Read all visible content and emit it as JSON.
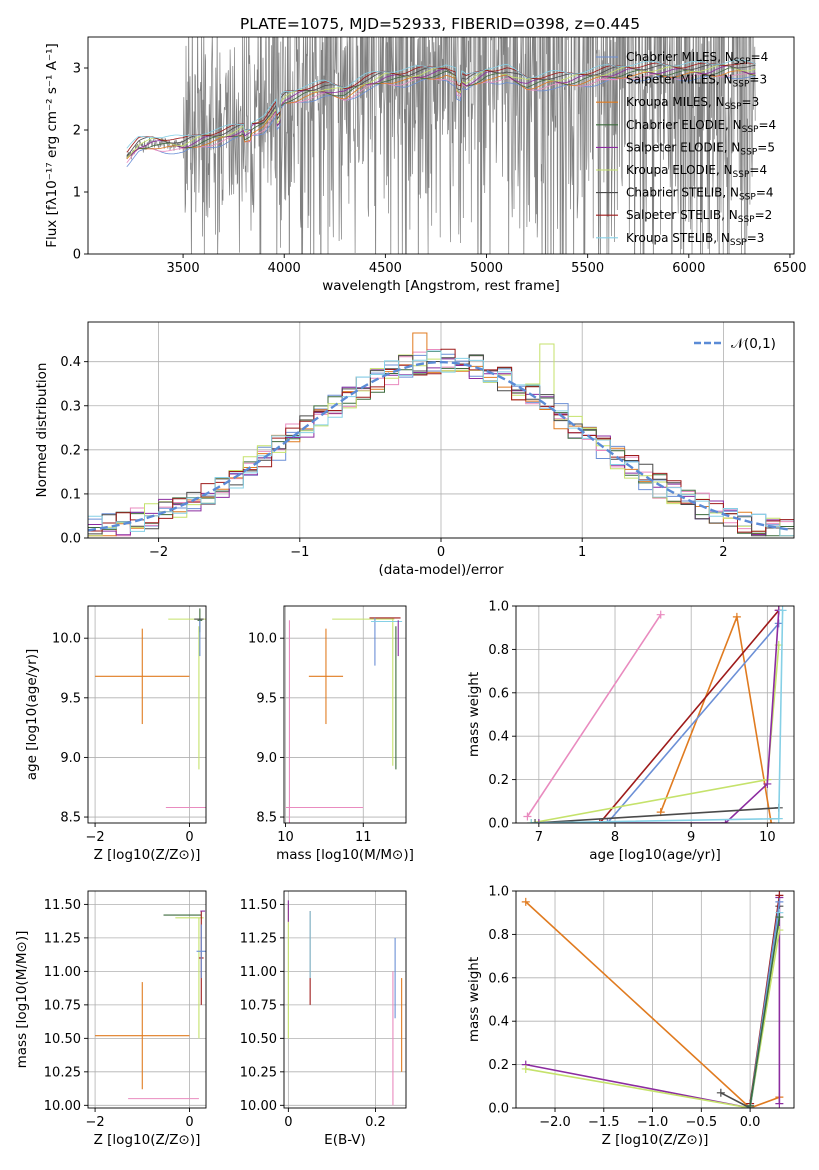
{
  "figure_title": "PLATE=1075, MJD=52933, FIBERID=0398, z=0.445",
  "models": [
    {
      "name": "Chabrier MILES",
      "nssp": "4",
      "color": "#6b8fd6"
    },
    {
      "name": "Salpeter MILES",
      "nssp": "3",
      "color": "#e98bbf"
    },
    {
      "name": "Kroupa MILES",
      "nssp": "3",
      "color": "#e07b20"
    },
    {
      "name": "Chabrier ELODIE",
      "nssp": "4",
      "color": "#3d6b3d"
    },
    {
      "name": "Salpeter ELODIE",
      "nssp": "5",
      "color": "#8c2ca0"
    },
    {
      "name": "Kroupa ELODIE",
      "nssp": "4",
      "color": "#c5e26b"
    },
    {
      "name": "Chabrier STELIB",
      "nssp": "4",
      "color": "#4a4a4a"
    },
    {
      "name": "Salpeter STELIB",
      "nssp": "2",
      "color": "#9e1b1b"
    },
    {
      "name": "Kroupa STELIB",
      "nssp": "3",
      "color": "#86d0e6"
    }
  ],
  "chart_data": [
    {
      "id": "spectrum",
      "type": "line",
      "xlabel": "wavelength [Angstrom, rest frame]",
      "ylabel": "Flux [fλ10⁻¹⁷ erg cm⁻² s⁻¹ A⁻¹]",
      "xlim": [
        3030,
        6520
      ],
      "ylim": [
        0,
        3.5
      ],
      "xticks": [
        3500,
        4000,
        4500,
        5000,
        5500,
        6000,
        6500
      ],
      "yticks": [
        0,
        1,
        2,
        3
      ],
      "legend": "top-right",
      "data_color": "#808080",
      "continuum": [
        [
          3220,
          1.55
        ],
        [
          3280,
          1.75
        ],
        [
          3350,
          1.8
        ],
        [
          3420,
          1.78
        ],
        [
          3500,
          1.75
        ],
        [
          3600,
          1.85
        ],
        [
          3700,
          1.9
        ],
        [
          3800,
          2.0
        ],
        [
          3900,
          2.1
        ],
        [
          4000,
          2.5
        ],
        [
          4100,
          2.6
        ],
        [
          4200,
          2.65
        ],
        [
          4300,
          2.6
        ],
        [
          4400,
          2.75
        ],
        [
          4500,
          2.85
        ],
        [
          4600,
          2.85
        ],
        [
          4700,
          2.9
        ],
        [
          4800,
          2.95
        ],
        [
          4900,
          2.75
        ],
        [
          5000,
          2.9
        ],
        [
          5100,
          2.9
        ],
        [
          5200,
          2.75
        ],
        [
          5300,
          2.8
        ],
        [
          5400,
          2.8
        ],
        [
          5500,
          2.85
        ],
        [
          5600,
          2.9
        ],
        [
          5700,
          2.95
        ],
        [
          5800,
          2.95
        ],
        [
          5900,
          2.95
        ],
        [
          6000,
          2.95
        ],
        [
          6100,
          2.95
        ],
        [
          6200,
          3.0
        ],
        [
          6300,
          2.95
        ]
      ]
    },
    {
      "id": "residuals",
      "type": "histogram",
      "xlabel": "(data-model)/error",
      "ylabel": "Normed distribution",
      "xlim": [
        -2.5,
        2.5
      ],
      "ylim": [
        0,
        0.49
      ],
      "xticks": [
        -2,
        -1,
        0,
        1,
        2
      ],
      "yticks": [
        0.0,
        0.1,
        0.2,
        0.3,
        0.4
      ],
      "grid": true,
      "legend": "top-right",
      "reference_curve": {
        "label": "𝒩(0,1)",
        "color": "#5b8bd6",
        "style": "dashed"
      },
      "bin_width": 0.1
    },
    {
      "id": "age-Z",
      "type": "errorbar",
      "xlabel": "Z [log10(Z/Z⊙)]",
      "ylabel": "age [log10(age/yr)]",
      "xlim": [
        -2.15,
        0.35
      ],
      "ylim": [
        8.45,
        10.27
      ],
      "xticks": [
        -2,
        0
      ],
      "yticks": [
        8.5,
        9.0,
        9.5,
        10.0
      ],
      "grid": true,
      "points": [
        {
          "model": 2,
          "x": -1.0,
          "xerr": 1.0,
          "y": 9.68,
          "yerr": 0.4
        },
        {
          "model": 1,
          "x": 0.1,
          "xerr": 0.6,
          "y": 8.58,
          "yerr": 0.0
        },
        {
          "model": 5,
          "x": 0.15,
          "xerr": 0.6,
          "y": 10.16,
          "yerr": 0.0
        },
        {
          "model": 5,
          "x": 0.2,
          "xerr": 0.0,
          "y": 9.5,
          "yerr": 0.6
        },
        {
          "model": 3,
          "x": 0.22,
          "xerr": 0.05,
          "y": 10.15,
          "yerr": 0.1
        },
        {
          "model": 0,
          "x": 0.22,
          "xerr": 0.0,
          "y": 10.0,
          "yerr": 0.15
        },
        {
          "model": 6,
          "x": 0.2,
          "xerr": 0.1,
          "y": 10.16,
          "yerr": 0.0
        }
      ]
    },
    {
      "id": "age-mass",
      "type": "errorbar",
      "xlabel": "mass [log10(M/M⊙)]",
      "ylabel": "",
      "xlim": [
        9.98,
        11.55
      ],
      "ylim": [
        8.45,
        10.27
      ],
      "xticks": [
        10,
        11
      ],
      "yticks": [
        8.5,
        9.0,
        9.5,
        10.0
      ],
      "grid": true,
      "points": [
        {
          "model": 2,
          "x": 10.52,
          "xerr": 0.22,
          "y": 9.68,
          "yerr": 0.4
        },
        {
          "model": 1,
          "x": 10.5,
          "xerr": 0.5,
          "y": 8.58,
          "yerr": 0.0
        },
        {
          "model": 1,
          "x": 10.05,
          "xerr": 0.0,
          "y": 9.3,
          "yerr": 0.85
        },
        {
          "model": 5,
          "x": 11.0,
          "xerr": 0.4,
          "y": 10.16,
          "yerr": 0.0
        },
        {
          "model": 5,
          "x": 11.38,
          "xerr": 0.0,
          "y": 9.55,
          "yerr": 0.62
        },
        {
          "model": 7,
          "x": 11.28,
          "xerr": 0.2,
          "y": 10.17,
          "yerr": 0.0
        },
        {
          "model": 0,
          "x": 11.15,
          "xerr": 0.0,
          "y": 9.97,
          "yerr": 0.2
        },
        {
          "model": 3,
          "x": 11.42,
          "xerr": 0.0,
          "y": 9.5,
          "yerr": 0.6
        },
        {
          "model": 8,
          "x": 11.3,
          "xerr": 0.2,
          "y": 10.14,
          "yerr": 0.0
        },
        {
          "model": 4,
          "x": 11.45,
          "xerr": 0.0,
          "y": 10.0,
          "yerr": 0.15
        }
      ]
    },
    {
      "id": "mw-age",
      "type": "line",
      "xlabel": "age [log10(age/yr)]",
      "ylabel": "mass weight",
      "xlim": [
        6.7,
        10.35
      ],
      "ylim": [
        0,
        1.0
      ],
      "xticks": [
        7,
        8,
        9,
        10
      ],
      "yticks": [
        0.0,
        0.2,
        0.4,
        0.6,
        0.8,
        1.0
      ],
      "grid": true,
      "series": [
        {
          "model": 1,
          "points": [
            [
              6.85,
              0.03
            ],
            [
              8.6,
              0.96
            ]
          ]
        },
        {
          "model": 2,
          "points": [
            [
              8.6,
              0.05
            ],
            [
              9.6,
              0.95
            ],
            [
              10.05,
              0.0
            ]
          ]
        },
        {
          "model": 7,
          "points": [
            [
              7.8,
              0.0
            ],
            [
              10.15,
              0.98
            ]
          ]
        },
        {
          "model": 0,
          "points": [
            [
              7.9,
              0.0
            ],
            [
              10.15,
              0.92
            ]
          ]
        },
        {
          "model": 5,
          "points": [
            [
              6.9,
              0.0
            ],
            [
              10.0,
              0.2
            ],
            [
              10.15,
              0.82
            ]
          ]
        },
        {
          "model": 4,
          "points": [
            [
              7.0,
              0.0
            ],
            [
              9.45,
              0.0
            ],
            [
              10.0,
              0.18
            ],
            [
              10.15,
              0.98
            ]
          ]
        },
        {
          "model": 6,
          "points": [
            [
              6.95,
              0.0
            ],
            [
              10.15,
              0.07
            ]
          ]
        },
        {
          "model": 8,
          "points": [
            [
              6.9,
              0.0
            ],
            [
              10.15,
              0.02
            ],
            [
              10.2,
              0.98
            ]
          ]
        }
      ]
    },
    {
      "id": "mass-Z",
      "type": "errorbar",
      "xlabel": "Z [log10(Z/Z⊙)]",
      "ylabel": "mass [log10(M/M⊙)]",
      "xlim": [
        -2.15,
        0.35
      ],
      "ylim": [
        9.98,
        11.6
      ],
      "xticks": [
        -2,
        0
      ],
      "yticks": [
        10.0,
        10.25,
        10.5,
        10.75,
        11.0,
        11.25,
        11.5
      ],
      "grid": true,
      "points": [
        {
          "model": 2,
          "x": -1.0,
          "xerr": 1.0,
          "y": 10.52,
          "yerr": 0.4
        },
        {
          "model": 1,
          "x": -0.55,
          "xerr": 0.75,
          "y": 10.05,
          "yerr": 0.0
        },
        {
          "model": 5,
          "x": 0.0,
          "xerr": 0.3,
          "y": 11.4,
          "yerr": 0.0
        },
        {
          "model": 5,
          "x": 0.2,
          "xerr": 0.0,
          "y": 10.95,
          "yerr": 0.45
        },
        {
          "model": 3,
          "x": -0.15,
          "xerr": 0.4,
          "y": 11.42,
          "yerr": 0.0
        },
        {
          "model": 7,
          "x": 0.25,
          "xerr": 0.05,
          "y": 11.1,
          "yerr": 0.35
        },
        {
          "model": 0,
          "x": 0.25,
          "xerr": 0.1,
          "y": 11.15,
          "yerr": 0.2
        },
        {
          "model": 4,
          "x": 0.28,
          "xerr": 0.05,
          "y": 11.45,
          "yerr": 0.0
        }
      ]
    },
    {
      "id": "mass-EBV",
      "type": "errorbar",
      "xlabel": "E(B-V)",
      "ylabel": "",
      "xlim": [
        -0.01,
        0.27
      ],
      "ylim": [
        9.98,
        11.6
      ],
      "xticks": [
        0.0,
        0.2
      ],
      "yticks": [
        10.0,
        10.25,
        10.5,
        10.75,
        11.0,
        11.25,
        11.5
      ],
      "grid": true,
      "points": [
        {
          "model": 5,
          "x": 0.0,
          "xerr": 0.0,
          "y": 11.0,
          "yerr": 0.5
        },
        {
          "model": 4,
          "x": 0.0,
          "xerr": 0.0,
          "y": 11.45,
          "yerr": 0.08
        },
        {
          "model": 7,
          "x": 0.05,
          "xerr": 0.0,
          "y": 11.1,
          "yerr": 0.35
        },
        {
          "model": 8,
          "x": 0.05,
          "xerr": 0.0,
          "y": 11.2,
          "yerr": 0.25
        },
        {
          "model": 1,
          "x": 0.24,
          "xerr": 0.0,
          "y": 10.5,
          "yerr": 0.5
        },
        {
          "model": 0,
          "x": 0.245,
          "xerr": 0.0,
          "y": 10.95,
          "yerr": 0.3
        },
        {
          "model": 2,
          "x": 0.26,
          "xerr": 0.0,
          "y": 10.6,
          "yerr": 0.35
        }
      ]
    },
    {
      "id": "mw-Z",
      "type": "line",
      "xlabel": "Z [log10(Z/Z⊙)]",
      "ylabel": "mass weight",
      "xlim": [
        -2.4,
        0.45
      ],
      "ylim": [
        0,
        1.0
      ],
      "xticks": [
        -2.0,
        -1.5,
        -1.0,
        -0.5,
        0.0
      ],
      "yticks": [
        0.0,
        0.2,
        0.4,
        0.6,
        0.8,
        1.0
      ],
      "grid": true,
      "series": [
        {
          "model": 2,
          "points": [
            [
              -2.3,
              0.95
            ],
            [
              0.0,
              0.0
            ],
            [
              0.3,
              0.05
            ]
          ]
        },
        {
          "model": 4,
          "points": [
            [
              -2.3,
              0.2
            ],
            [
              0.0,
              0.0
            ],
            [
              0.3,
              0.97
            ],
            [
              0.3,
              0.02
            ]
          ]
        },
        {
          "model": 5,
          "points": [
            [
              -2.3,
              0.18
            ],
            [
              0.0,
              0.0
            ],
            [
              0.3,
              0.82
            ]
          ]
        },
        {
          "model": 6,
          "points": [
            [
              -0.3,
              0.07
            ],
            [
              0.0,
              0.0
            ],
            [
              0.3,
              0.93
            ]
          ]
        },
        {
          "model": 7,
          "points": [
            [
              0.0,
              0.02
            ],
            [
              0.3,
              0.98
            ]
          ]
        },
        {
          "model": 0,
          "points": [
            [
              0.0,
              0.01
            ],
            [
              0.3,
              0.95
            ]
          ]
        },
        {
          "model": 8,
          "points": [
            [
              0.0,
              0.0
            ],
            [
              0.3,
              0.9
            ]
          ]
        },
        {
          "model": 3,
          "points": [
            [
              0.0,
              0.01
            ],
            [
              0.3,
              0.88
            ]
          ]
        }
      ]
    }
  ]
}
